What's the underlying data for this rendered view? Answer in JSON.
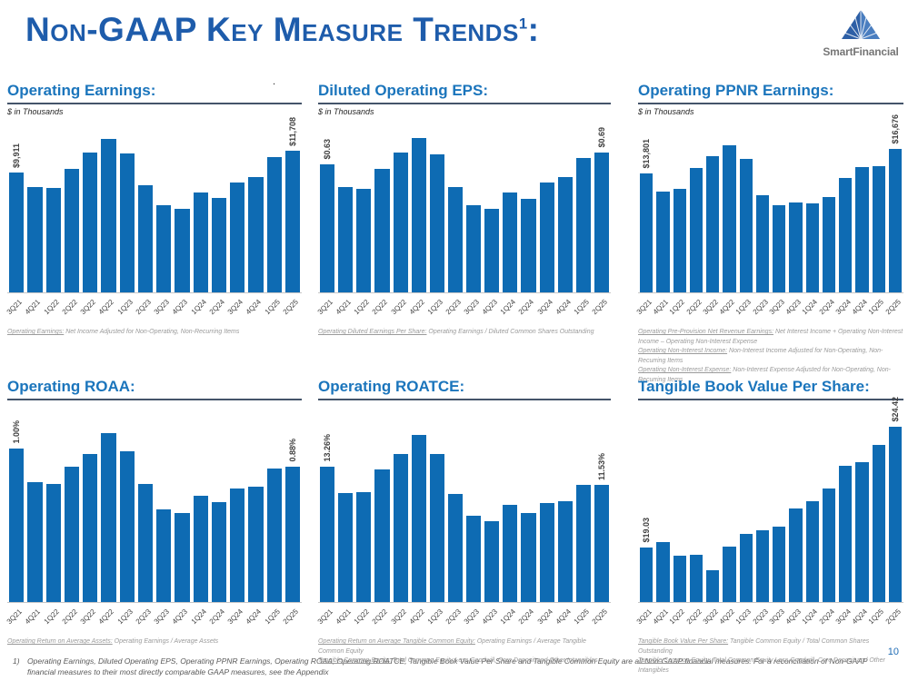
{
  "header": {
    "title": "Non-GAAP Key Measure Trends",
    "title_superscript": "1",
    "title_colon": ":",
    "logo_text": "SmartFinancial",
    "stray_dot": "."
  },
  "footer": {
    "note_marker": "1)",
    "note_text": "Operating Earnings, Diluted Operating EPS, Operating PPNR Earnings, Operating ROAA, Operating ROATCE, Tangible Book Value Per Share and Tangible Common Equity are all Non-GAAP financial measures. For a reconciliation of Non-GAAP financial measures to their most directly comparable GAAP measures, see the Appendix",
    "page_number": "10"
  },
  "colors": {
    "bar_blue": "#0e6bb3",
    "heading_blue": "#1b75bc",
    "title_blue": "#1e5cab",
    "heading_underline": "#44546a",
    "footnote_gray": "#9a9a9a",
    "logo_gray": "#767676"
  },
  "chart_data": [
    {
      "type": "bar",
      "title": "Operating Earnings:",
      "subtitle": "$ in Thousands",
      "categories": [
        "3Q21",
        "4Q21",
        "1Q22",
        "2Q22",
        "3Q22",
        "4Q22",
        "1Q23",
        "2Q23",
        "3Q23",
        "4Q23",
        "1Q24",
        "2Q24",
        "3Q24",
        "4Q24",
        "1Q25",
        "2Q25"
      ],
      "values": [
        9911,
        8700,
        8650,
        10250,
        11600,
        12750,
        11500,
        8850,
        7250,
        6900,
        8300,
        7800,
        9100,
        9550,
        11200,
        11708
      ],
      "first_value_label": "$9,911",
      "last_value_label": "$11,708",
      "ylim": [
        0,
        14300
      ],
      "footnotes": [
        {
          "lead": "Operating Earnings:",
          "text": " Net Income Adjusted for Non-Operating, Non-Recurring Items"
        }
      ]
    },
    {
      "type": "bar",
      "title": "Diluted Operating EPS:",
      "subtitle": "$ in Thousands",
      "categories": [
        "3Q21",
        "4Q21",
        "1Q22",
        "2Q22",
        "3Q22",
        "4Q22",
        "1Q23",
        "2Q23",
        "3Q23",
        "4Q23",
        "1Q24",
        "2Q24",
        "3Q24",
        "4Q24",
        "1Q25",
        "2Q25"
      ],
      "values": [
        0.63,
        0.52,
        0.51,
        0.61,
        0.69,
        0.76,
        0.68,
        0.52,
        0.43,
        0.41,
        0.49,
        0.46,
        0.54,
        0.57,
        0.66,
        0.69
      ],
      "first_value_label": "$0.63",
      "last_value_label": "$0.69",
      "ylim": [
        0,
        0.85
      ],
      "footnotes": [
        {
          "lead": "Operating Diluted Earnings Per Share:",
          "text": " Operating Earnings / Diluted Common Shares Outstanding"
        }
      ]
    },
    {
      "type": "bar",
      "title": "Operating PPNR Earnings:",
      "subtitle": "$ in Thousands",
      "categories": [
        "3Q21",
        "4Q21",
        "1Q22",
        "2Q22",
        "3Q22",
        "4Q22",
        "1Q23",
        "2Q23",
        "3Q23",
        "4Q23",
        "1Q24",
        "2Q24",
        "3Q24",
        "4Q24",
        "1Q25",
        "2Q25"
      ],
      "values": [
        13801,
        11650,
        12000,
        14450,
        15800,
        17100,
        15450,
        11300,
        10150,
        10400,
        10300,
        11000,
        13300,
        14500,
        14600,
        16676
      ],
      "first_value_label": "$13,801",
      "last_value_label": "$16,676",
      "ylim": [
        0,
        20000
      ],
      "footnotes": [
        {
          "lead": "Operating Pre-Provision Net Revenue Earnings:",
          "text": " Net Interest Income + Operating Non-Interest Income – Operating Non-Interest Expense"
        },
        {
          "lead": "Operating Non-Interest Income:",
          "text": " Non-Interest Income Adjusted for Non-Operating, Non-Recurring Items"
        },
        {
          "lead": "Operating Non-Interest Expense:",
          "text": " Non-Interest Expense Adjusted for Non-Operating, Non-Recurring Items"
        }
      ]
    },
    {
      "type": "bar",
      "title": "Operating ROAA:",
      "subtitle": null,
      "categories": [
        "3Q21",
        "4Q21",
        "1Q22",
        "2Q22",
        "3Q22",
        "4Q22",
        "1Q23",
        "2Q23",
        "3Q23",
        "4Q23",
        "1Q24",
        "2Q24",
        "3Q24",
        "4Q24",
        "1Q25",
        "2Q25"
      ],
      "values": [
        1.0,
        0.78,
        0.77,
        0.88,
        0.96,
        1.1,
        0.98,
        0.77,
        0.6,
        0.58,
        0.69,
        0.65,
        0.74,
        0.75,
        0.87,
        0.88
      ],
      "first_value_label": "1.00%",
      "last_value_label": "0.88%",
      "ylim": [
        0,
        1.24
      ],
      "footnotes": [
        {
          "lead": "Operating Return on Average Assets:",
          "text": " Operating Earnings / Average Assets"
        }
      ]
    },
    {
      "type": "bar",
      "title": "Operating ROATCE:",
      "subtitle": null,
      "categories": [
        "3Q21",
        "4Q21",
        "1Q22",
        "2Q22",
        "3Q22",
        "4Q22",
        "1Q23",
        "2Q23",
        "3Q23",
        "4Q23",
        "1Q24",
        "2Q24",
        "3Q24",
        "4Q24",
        "1Q25",
        "2Q25"
      ],
      "values": [
        13.26,
        10.7,
        10.8,
        13.0,
        14.5,
        16.4,
        14.5,
        10.6,
        8.5,
        7.9,
        9.5,
        8.7,
        9.7,
        9.9,
        11.5,
        11.53
      ],
      "first_value_label": "13.26%",
      "last_value_label": "11.53%",
      "ylim": [
        0,
        18.7
      ],
      "footnotes": [
        {
          "lead": "Operating Return on Average Tangible Common Equity:",
          "text": " Operating Earnings / Average Tangible Common Equity"
        },
        {
          "lead": "Tangible Common Equity:",
          "text": " Total Common Equity Less Goodwill, Core Deposit and Other Intangibles"
        }
      ]
    },
    {
      "type": "bar",
      "title": "Tangible Book Value Per Share:",
      "subtitle": null,
      "categories": [
        "3Q21",
        "4Q21",
        "1Q22",
        "2Q22",
        "3Q22",
        "4Q22",
        "1Q23",
        "2Q23",
        "3Q23",
        "4Q23",
        "1Q24",
        "2Q24",
        "3Q24",
        "4Q24",
        "1Q25",
        "2Q25"
      ],
      "values": [
        19.03,
        19.27,
        18.65,
        18.72,
        18.0,
        19.08,
        19.62,
        19.81,
        19.96,
        20.76,
        21.1,
        21.66,
        22.66,
        22.83,
        23.59,
        24.42
      ],
      "first_value_label": "$19.03",
      "last_value_label": "$24.42",
      "ylim": [
        16.6,
        25.1
      ],
      "footnotes": [
        {
          "lead": "Tangible Book Value Per Share:",
          "text": " Tangible Common Equity / Total Common Shares Outstanding"
        },
        {
          "lead": "Tangible Common Equity:",
          "text": " Total Common Equity Less Goodwill, Core Deposit and Other Intangibles"
        }
      ]
    }
  ]
}
